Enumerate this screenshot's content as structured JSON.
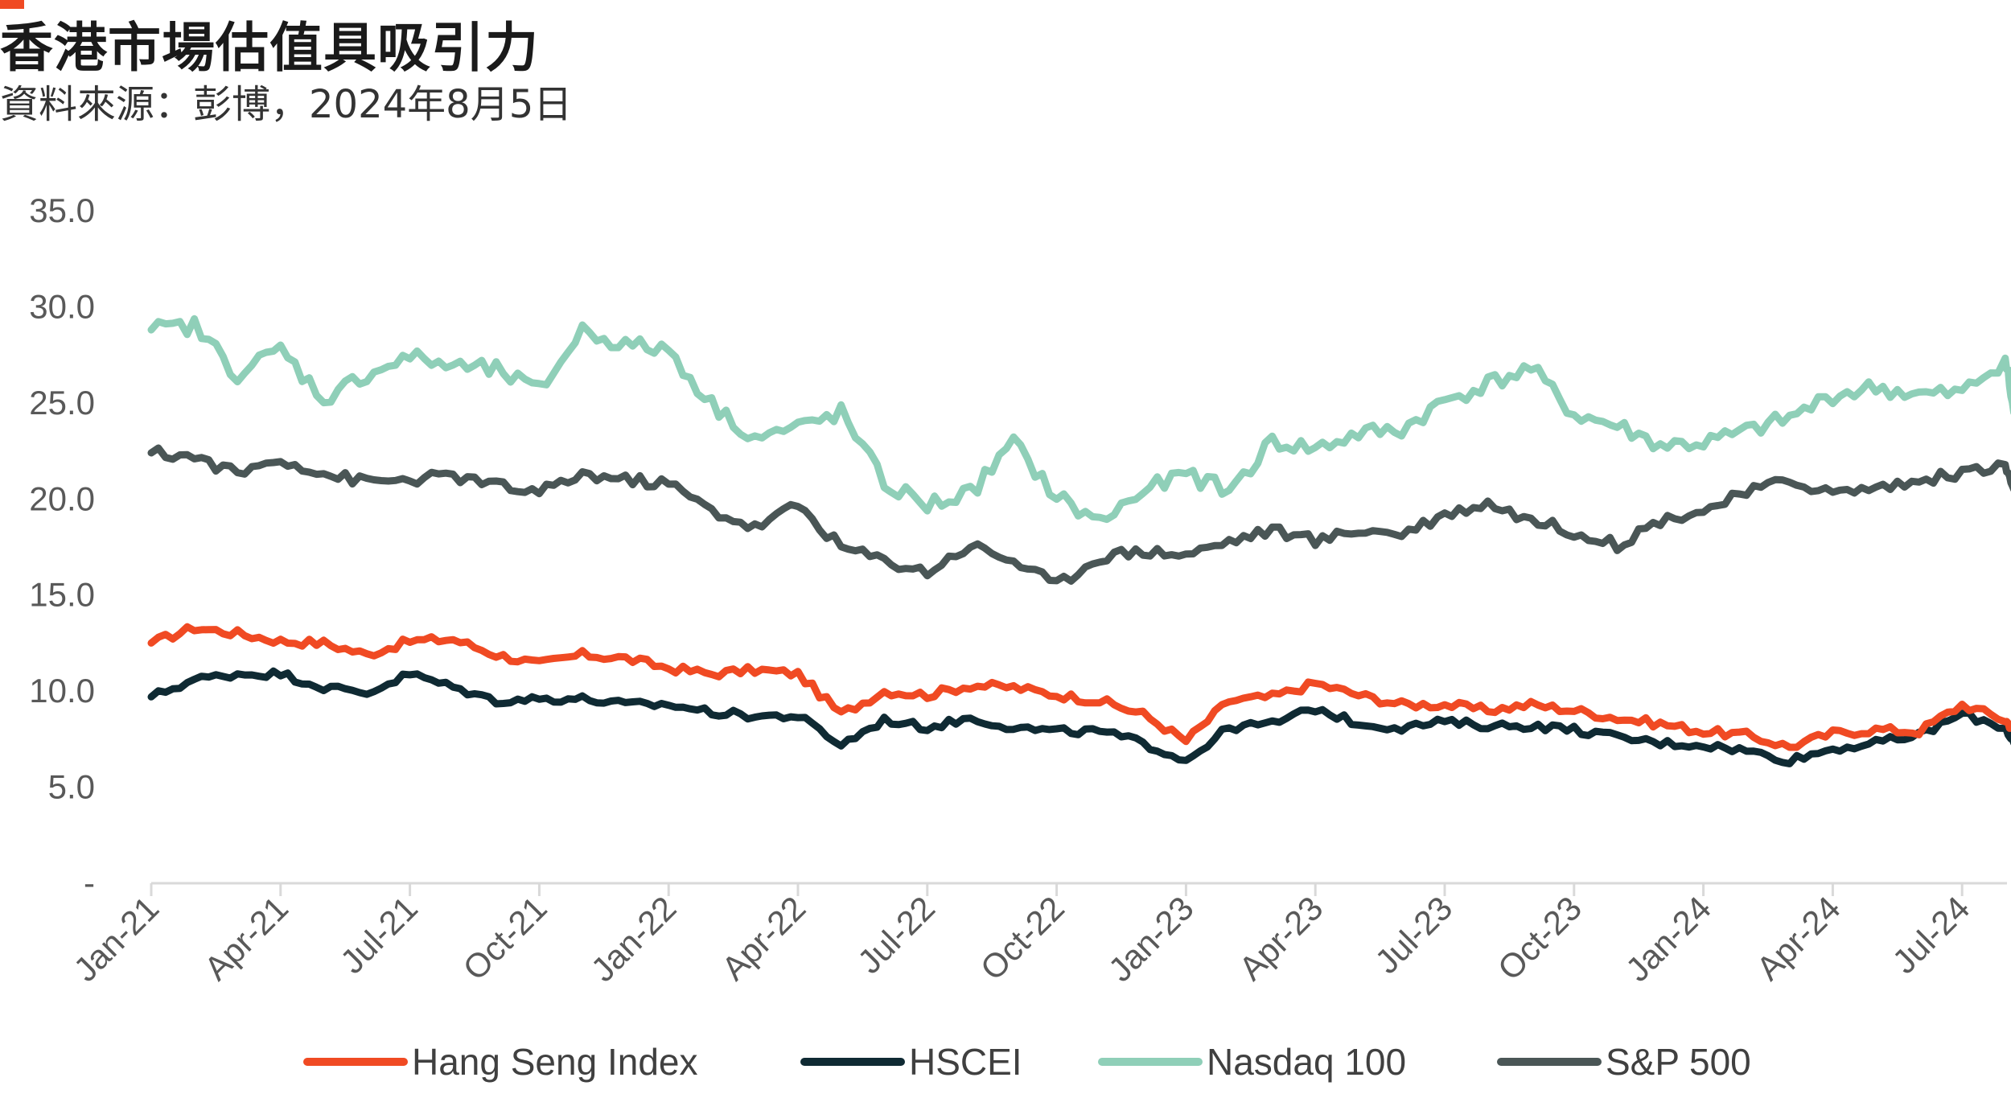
{
  "header": {
    "title": "香港市場估值具吸引力",
    "subtitle": "資料來源：彭博，2024年8月5日"
  },
  "colors": {
    "accent": "#f04a23",
    "hang_seng": "#f04a23",
    "hscei": "#0f2a33",
    "nasdaq": "#8fcfb8",
    "sp500": "#4a5656",
    "axis": "#d9d9d9"
  },
  "chart_data": {
    "type": "line",
    "title": "香港市場估值具吸引力",
    "y_ticks": [
      "-",
      "5.0",
      "10.0",
      "15.0",
      "20.0",
      "25.0",
      "30.0",
      "35.0"
    ],
    "x_ticks": [
      "Jan-21",
      "Apr-21",
      "Jul-21",
      "Oct-21",
      "Jan-22",
      "Apr-22",
      "Jul-22",
      "Oct-22",
      "Jan-23",
      "Apr-23",
      "Jul-23",
      "Oct-23",
      "Jan-24",
      "Apr-24",
      "Jul-24"
    ],
    "ylim": [
      0,
      35
    ],
    "x_unit": "months since Jan-21",
    "x": [
      0,
      1,
      2,
      3,
      4,
      5,
      6,
      7,
      8,
      9,
      10,
      11,
      12,
      13,
      14,
      15,
      16,
      17,
      18,
      19,
      20,
      21,
      22,
      23,
      24,
      25,
      26,
      27,
      28,
      29,
      30,
      31,
      32,
      33,
      34,
      35,
      36,
      37,
      38,
      39,
      40,
      41,
      42,
      43,
      43.2
    ],
    "series": [
      {
        "name": "Hang Seng Index",
        "values": [
          12.5,
          13.3,
          13.0,
          12.6,
          12.5,
          11.9,
          12.6,
          12.7,
          11.9,
          11.4,
          11.9,
          11.7,
          11.2,
          10.9,
          11.1,
          10.9,
          8.8,
          10.0,
          9.8,
          10.3,
          10.2,
          9.8,
          9.5,
          8.8,
          7.4,
          9.5,
          9.7,
          10.4,
          9.8,
          9.3,
          9.3,
          9.0,
          9.3,
          9.0,
          8.6,
          8.3,
          7.9,
          7.7,
          7.1,
          7.8,
          8.0,
          7.9,
          9.3,
          8.5,
          8.0
        ]
      },
      {
        "name": "HSCEI",
        "values": [
          9.7,
          10.6,
          10.9,
          10.9,
          10.2,
          9.9,
          10.9,
          10.2,
          9.5,
          9.6,
          9.6,
          9.3,
          9.3,
          8.9,
          8.7,
          8.7,
          7.2,
          8.5,
          8.1,
          8.6,
          8.1,
          7.9,
          7.9,
          7.3,
          6.4,
          8.1,
          8.3,
          9.1,
          8.3,
          8.1,
          8.4,
          8.2,
          8.2,
          8.0,
          7.6,
          7.3,
          7.2,
          6.9,
          6.4,
          7.0,
          7.3,
          7.7,
          8.8,
          8.1,
          7.3
        ]
      },
      {
        "name": "Nasdaq 100",
        "values": [
          28.8,
          29.0,
          26.5,
          27.8,
          25.2,
          26.5,
          27.4,
          26.9,
          26.7,
          25.6,
          28.8,
          28.0,
          27.8,
          24.9,
          23.2,
          23.7,
          24.5,
          20.8,
          19.7,
          20.3,
          22.9,
          20.1,
          18.8,
          20.4,
          21.3,
          20.4,
          23.0,
          22.6,
          23.4,
          23.6,
          25.1,
          26.0,
          26.8,
          24.4,
          23.8,
          22.8,
          22.9,
          23.5,
          24.2,
          25.4,
          25.8,
          25.4,
          25.5,
          27.3,
          24.5
        ]
      },
      {
        "name": "S&P 500",
        "values": [
          22.4,
          22.2,
          21.3,
          22.1,
          21.3,
          20.9,
          21.0,
          21.2,
          20.7,
          20.3,
          21.3,
          21.0,
          20.8,
          19.4,
          18.5,
          19.7,
          17.5,
          16.8,
          16.2,
          17.6,
          16.8,
          15.5,
          17.0,
          17.3,
          17.1,
          17.8,
          18.4,
          17.8,
          18.4,
          18.2,
          19.2,
          19.8,
          18.9,
          18.3,
          17.6,
          18.9,
          19.4,
          20.3,
          21.0,
          20.3,
          20.6,
          20.9,
          21.4,
          21.7,
          20.5
        ]
      }
    ],
    "legend_position": "bottom",
    "grid": false
  }
}
